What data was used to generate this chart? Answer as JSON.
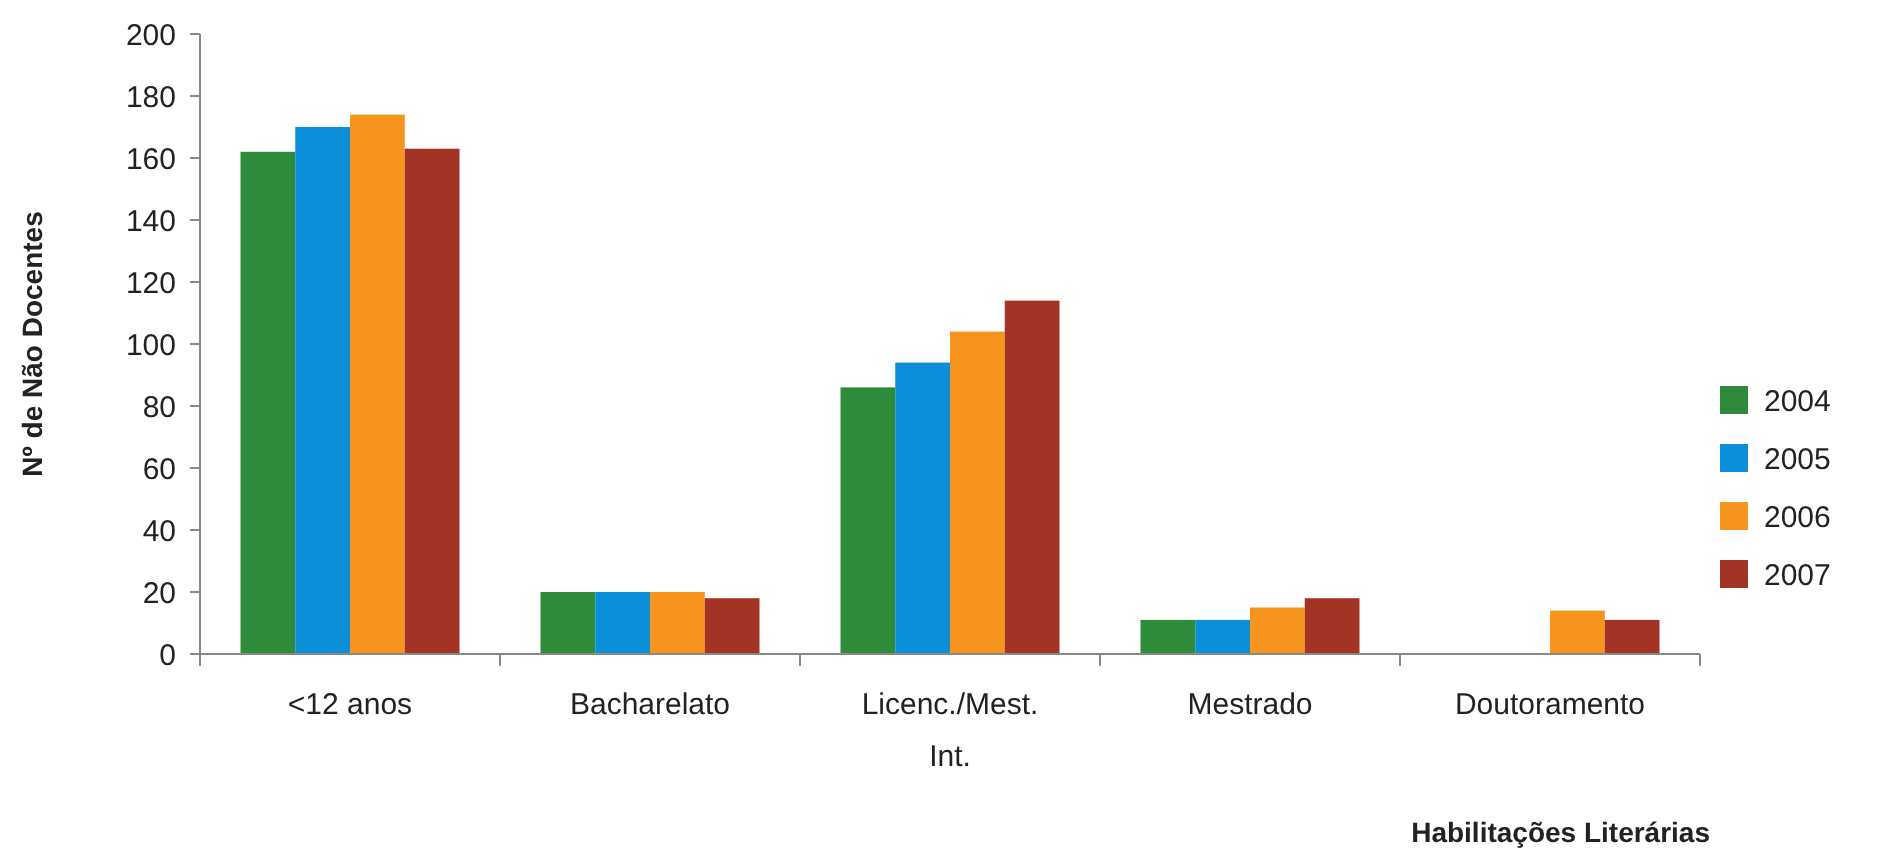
{
  "chart_data": {
    "type": "bar",
    "xlabel": "Habilitações Literárias",
    "ylabel": "Nº de Não Docentes",
    "categories": [
      "<12 anos",
      "Bacharelato",
      "Licenc./Mest. Int.",
      "Mestrado",
      "Doutoramento"
    ],
    "series": [
      {
        "name": "2004",
        "color": "#2e8b3a",
        "values": [
          162,
          20,
          86,
          11,
          0
        ]
      },
      {
        "name": "2005",
        "color": "#0a8fd8",
        "values": [
          170,
          20,
          94,
          11,
          0
        ]
      },
      {
        "name": "2006",
        "color": "#f7941d",
        "values": [
          174,
          20,
          104,
          15,
          14
        ]
      },
      {
        "name": "2007",
        "color": "#a33324",
        "values": [
          163,
          18,
          114,
          18,
          11
        ]
      }
    ],
    "ylim": [
      0,
      200
    ],
    "yticks": [
      0,
      20,
      40,
      60,
      80,
      100,
      120,
      140,
      160,
      180,
      200
    ],
    "grid": false,
    "legend": "right"
  }
}
